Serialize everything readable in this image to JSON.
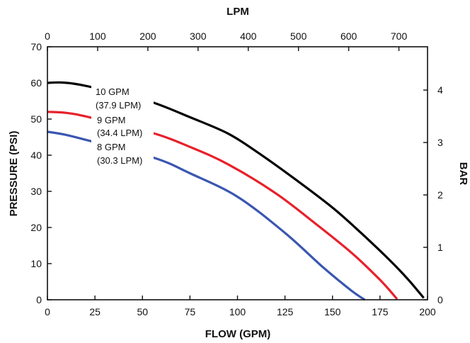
{
  "chart_data": {
    "type": "line",
    "xlabel": "FLOW (GPM)",
    "ylabel": "PRESSURE (PSI)",
    "x2label": "LPM",
    "y2label": "BAR",
    "xlim": [
      0,
      200
    ],
    "ylim": [
      0,
      70
    ],
    "x2lim": [
      0,
      757
    ],
    "y2lim": [
      0,
      4.826
    ],
    "x_ticks": [
      0,
      25,
      50,
      75,
      100,
      125,
      150,
      175,
      200
    ],
    "y_ticks": [
      0,
      10,
      20,
      30,
      40,
      50,
      60,
      70
    ],
    "x2_ticks": [
      0,
      100,
      200,
      300,
      400,
      500,
      600,
      700
    ],
    "y2_ticks": [
      0,
      1,
      2,
      3,
      4
    ],
    "grid": false,
    "series": [
      {
        "name_line1": "10 GPM",
        "name_line2": "(37.9 LPM)",
        "color": "#000000",
        "x": [
          0,
          8,
          20,
          52,
          75,
          95,
          110,
          130,
          150,
          165,
          180,
          190,
          198
        ],
        "y": [
          60,
          60.1,
          59.2,
          55.2,
          50.5,
          46,
          41,
          33.5,
          25.5,
          18.5,
          11,
          5.5,
          0.5
        ]
      },
      {
        "name_line1": "9 GPM",
        "name_line2": "(34.4 LPM)",
        "color": "#e8202a",
        "x": [
          0,
          10,
          22,
          55,
          75,
          95,
          120,
          140,
          160,
          175,
          184
        ],
        "y": [
          52,
          51.7,
          50.5,
          46.2,
          42.3,
          37.5,
          29.5,
          21.5,
          13,
          5.5,
          0.2
        ]
      },
      {
        "name_line1": "8 GPM",
        "name_line2": "(30.3 LPM)",
        "color": "#3a56b0",
        "x": [
          0,
          10,
          22,
          56,
          75,
          100,
          125,
          145,
          160,
          167
        ],
        "y": [
          46.5,
          45.6,
          44,
          39.3,
          35,
          28.5,
          18.5,
          9,
          2.5,
          0
        ]
      }
    ]
  }
}
